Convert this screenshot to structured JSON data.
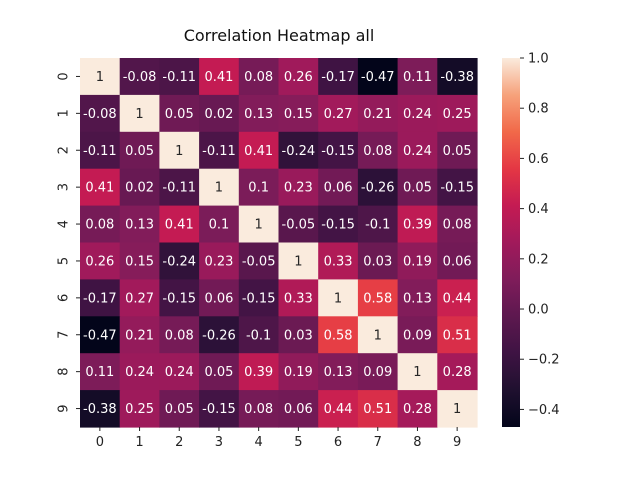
{
  "chart_data": {
    "type": "heatmap",
    "title": "Correlation Heatmap all",
    "x_labels": [
      "0",
      "1",
      "2",
      "3",
      "4",
      "5",
      "6",
      "7",
      "8",
      "9"
    ],
    "y_labels": [
      "0",
      "1",
      "2",
      "3",
      "4",
      "5",
      "6",
      "7",
      "8",
      "9"
    ],
    "values": [
      [
        1,
        -0.08,
        -0.11,
        0.41,
        0.08,
        0.26,
        -0.17,
        -0.47,
        0.11,
        -0.38
      ],
      [
        -0.08,
        1,
        0.05,
        0.02,
        0.13,
        0.15,
        0.27,
        0.21,
        0.24,
        0.25
      ],
      [
        -0.11,
        0.05,
        1,
        -0.11,
        0.41,
        -0.24,
        -0.15,
        0.08,
        0.24,
        0.05
      ],
      [
        0.41,
        0.02,
        -0.11,
        1,
        0.1,
        0.23,
        0.06,
        -0.26,
        0.05,
        -0.15
      ],
      [
        0.08,
        0.13,
        0.41,
        0.1,
        1,
        -0.05,
        -0.15,
        -0.1,
        0.39,
        0.08
      ],
      [
        0.26,
        0.15,
        -0.24,
        0.23,
        -0.05,
        1,
        0.33,
        0.03,
        0.19,
        0.06
      ],
      [
        -0.17,
        0.27,
        -0.15,
        0.06,
        -0.15,
        0.33,
        1,
        0.58,
        0.13,
        0.44
      ],
      [
        -0.47,
        0.21,
        0.08,
        -0.26,
        -0.1,
        0.03,
        0.58,
        1,
        0.09,
        0.51
      ],
      [
        0.11,
        0.24,
        0.24,
        0.05,
        0.39,
        0.19,
        0.13,
        0.09,
        1,
        0.28
      ],
      [
        -0.38,
        0.25,
        0.05,
        -0.15,
        0.08,
        0.06,
        0.44,
        0.51,
        0.28,
        1
      ]
    ],
    "value_range": [
      -0.47,
      1
    ],
    "colorbar": {
      "ticks": [
        -0.4,
        -0.2,
        0.0,
        0.2,
        0.4,
        0.6,
        0.8,
        1.0
      ],
      "tick_labels": [
        "−0.4",
        "−0.2",
        "0.0",
        "0.2",
        "0.4",
        "0.6",
        "0.8",
        "1.0"
      ]
    },
    "colormap": "rocket",
    "grid": false
  }
}
